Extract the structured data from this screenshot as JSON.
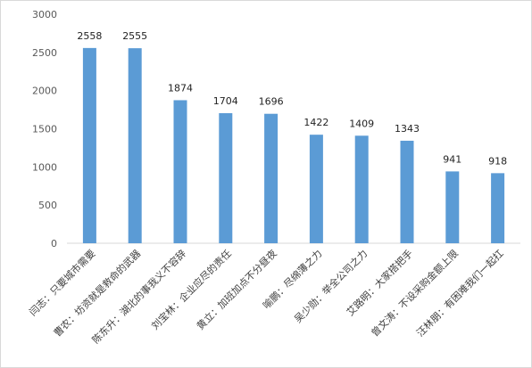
{
  "chart_data": {
    "type": "bar",
    "title": "",
    "xlabel": "",
    "ylabel": "",
    "ylim": [
      0,
      3000
    ],
    "yticks": [
      0,
      500,
      1000,
      1500,
      2000,
      2500,
      3000
    ],
    "grid": false,
    "legend": "none",
    "bar_color": "#5b9bd5",
    "categories": [
      "闫志：只要城市需要",
      "曹农：坊资就是救命的武器",
      "陈东升：湖北的事我义不容辞",
      "刘宝林：企业应尽的责任",
      "黄立：加班加点不分昼夜",
      "喻鹏：尽绵薄之力",
      "吴少勋：举全公司之力",
      "艾路明：大家搭把手",
      "曾文涛：不设采购金额上限",
      "汪林朋：有困难我们一起扛"
    ],
    "values": [
      2558,
      2555,
      1874,
      1704,
      1696,
      1422,
      1409,
      1343,
      941,
      918
    ]
  }
}
